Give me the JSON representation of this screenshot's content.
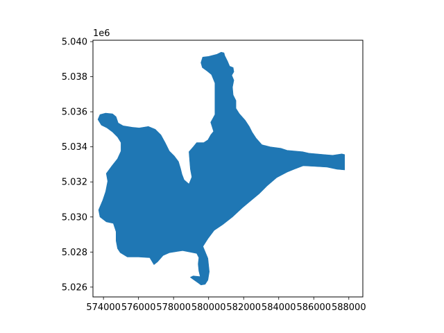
{
  "chart_data": {
    "type": "map",
    "title": "",
    "xlabel": "",
    "ylabel": "",
    "xlim": [
      573400,
      588800
    ],
    "ylim": [
      5025440,
      5040080
    ],
    "y_offset_label": "1e6",
    "x_ticks": [
      574000,
      576000,
      578000,
      580000,
      582000,
      584000,
      586000,
      588000
    ],
    "x_tick_labels": [
      "574000",
      "576000",
      "578000",
      "580000",
      "582000",
      "584000",
      "586000",
      "588000"
    ],
    "y_ticks": [
      5026000,
      5028000,
      5030000,
      5032000,
      5034000,
      5036000,
      5038000,
      5040000
    ],
    "y_tick_labels": [
      "5.026",
      "5.028",
      "5.030",
      "5.032",
      "5.034",
      "5.036",
      "5.038",
      "5.040"
    ],
    "grid": false,
    "legend": "none",
    "fill_color": "#1f77b4",
    "series": [
      {
        "values": [
          [
            579660,
            5039120
          ],
          [
            580000,
            5039160
          ],
          [
            580480,
            5039280
          ],
          [
            580720,
            5039400
          ],
          [
            580880,
            5039360
          ],
          [
            580920,
            5039200
          ],
          [
            581080,
            5038880
          ],
          [
            581200,
            5038600
          ],
          [
            581400,
            5038520
          ],
          [
            581440,
            5038280
          ],
          [
            581320,
            5038080
          ],
          [
            581440,
            5037800
          ],
          [
            581360,
            5037400
          ],
          [
            581400,
            5036960
          ],
          [
            581560,
            5036640
          ],
          [
            581560,
            5036200
          ],
          [
            581760,
            5035880
          ],
          [
            582080,
            5035520
          ],
          [
            582320,
            5035160
          ],
          [
            582480,
            5034840
          ],
          [
            582720,
            5034480
          ],
          [
            583040,
            5034120
          ],
          [
            583520,
            5034000
          ],
          [
            584120,
            5033920
          ],
          [
            584480,
            5033800
          ],
          [
            584920,
            5033760
          ],
          [
            585360,
            5033720
          ],
          [
            585720,
            5033640
          ],
          [
            586160,
            5033600
          ],
          [
            586600,
            5033560
          ],
          [
            587080,
            5033520
          ],
          [
            587600,
            5033600
          ],
          [
            587760,
            5033560
          ],
          [
            587760,
            5032680
          ],
          [
            587320,
            5032720
          ],
          [
            586760,
            5032840
          ],
          [
            586120,
            5032880
          ],
          [
            585400,
            5032920
          ],
          [
            584880,
            5032720
          ],
          [
            584480,
            5032560
          ],
          [
            583880,
            5032240
          ],
          [
            583320,
            5031760
          ],
          [
            582880,
            5031320
          ],
          [
            582400,
            5030920
          ],
          [
            581920,
            5030520
          ],
          [
            581360,
            5030000
          ],
          [
            580800,
            5029560
          ],
          [
            580320,
            5029240
          ],
          [
            579960,
            5028760
          ],
          [
            579680,
            5028320
          ],
          [
            579960,
            5027640
          ],
          [
            580040,
            5026880
          ],
          [
            579960,
            5026400
          ],
          [
            579800,
            5026160
          ],
          [
            579560,
            5026120
          ],
          [
            579400,
            5026240
          ],
          [
            579120,
            5026440
          ],
          [
            578960,
            5026560
          ],
          [
            579120,
            5026640
          ],
          [
            579520,
            5026600
          ],
          [
            579440,
            5026920
          ],
          [
            579400,
            5027320
          ],
          [
            579440,
            5027680
          ],
          [
            579320,
            5027920
          ],
          [
            578520,
            5028080
          ],
          [
            577760,
            5027960
          ],
          [
            577400,
            5027800
          ],
          [
            577080,
            5027440
          ],
          [
            576880,
            5027280
          ],
          [
            576640,
            5027680
          ],
          [
            576000,
            5027720
          ],
          [
            575360,
            5027720
          ],
          [
            574960,
            5027960
          ],
          [
            574800,
            5028200
          ],
          [
            574720,
            5028640
          ],
          [
            574720,
            5029160
          ],
          [
            574560,
            5029640
          ],
          [
            574160,
            5029720
          ],
          [
            573800,
            5030000
          ],
          [
            573720,
            5030400
          ],
          [
            573960,
            5030960
          ],
          [
            574120,
            5031440
          ],
          [
            574240,
            5032040
          ],
          [
            574160,
            5032480
          ],
          [
            574480,
            5032920
          ],
          [
            574800,
            5033320
          ],
          [
            575000,
            5033760
          ],
          [
            575000,
            5034240
          ],
          [
            574800,
            5034560
          ],
          [
            574520,
            5034840
          ],
          [
            574200,
            5035080
          ],
          [
            573880,
            5035240
          ],
          [
            573680,
            5035560
          ],
          [
            573800,
            5035840
          ],
          [
            574120,
            5035920
          ],
          [
            574520,
            5035880
          ],
          [
            574720,
            5035720
          ],
          [
            574840,
            5035360
          ],
          [
            575120,
            5035200
          ],
          [
            575640,
            5035120
          ],
          [
            576040,
            5035080
          ],
          [
            576560,
            5035160
          ],
          [
            576960,
            5035000
          ],
          [
            577280,
            5034680
          ],
          [
            577520,
            5034240
          ],
          [
            577760,
            5033760
          ],
          [
            578040,
            5033480
          ],
          [
            578280,
            5033160
          ],
          [
            578400,
            5032760
          ],
          [
            578480,
            5032440
          ],
          [
            578600,
            5032120
          ],
          [
            578880,
            5031880
          ],
          [
            579040,
            5032280
          ],
          [
            578960,
            5032720
          ],
          [
            578920,
            5033200
          ],
          [
            578880,
            5033720
          ],
          [
            579120,
            5034000
          ],
          [
            579320,
            5034240
          ],
          [
            579720,
            5034240
          ],
          [
            579960,
            5034400
          ],
          [
            580120,
            5034680
          ],
          [
            580280,
            5034880
          ],
          [
            580120,
            5035400
          ],
          [
            580360,
            5035840
          ],
          [
            580360,
            5036440
          ],
          [
            580360,
            5037000
          ],
          [
            580360,
            5037640
          ],
          [
            580160,
            5038120
          ],
          [
            579920,
            5038320
          ],
          [
            579640,
            5038520
          ],
          [
            579560,
            5038800
          ]
        ]
      }
    ]
  }
}
